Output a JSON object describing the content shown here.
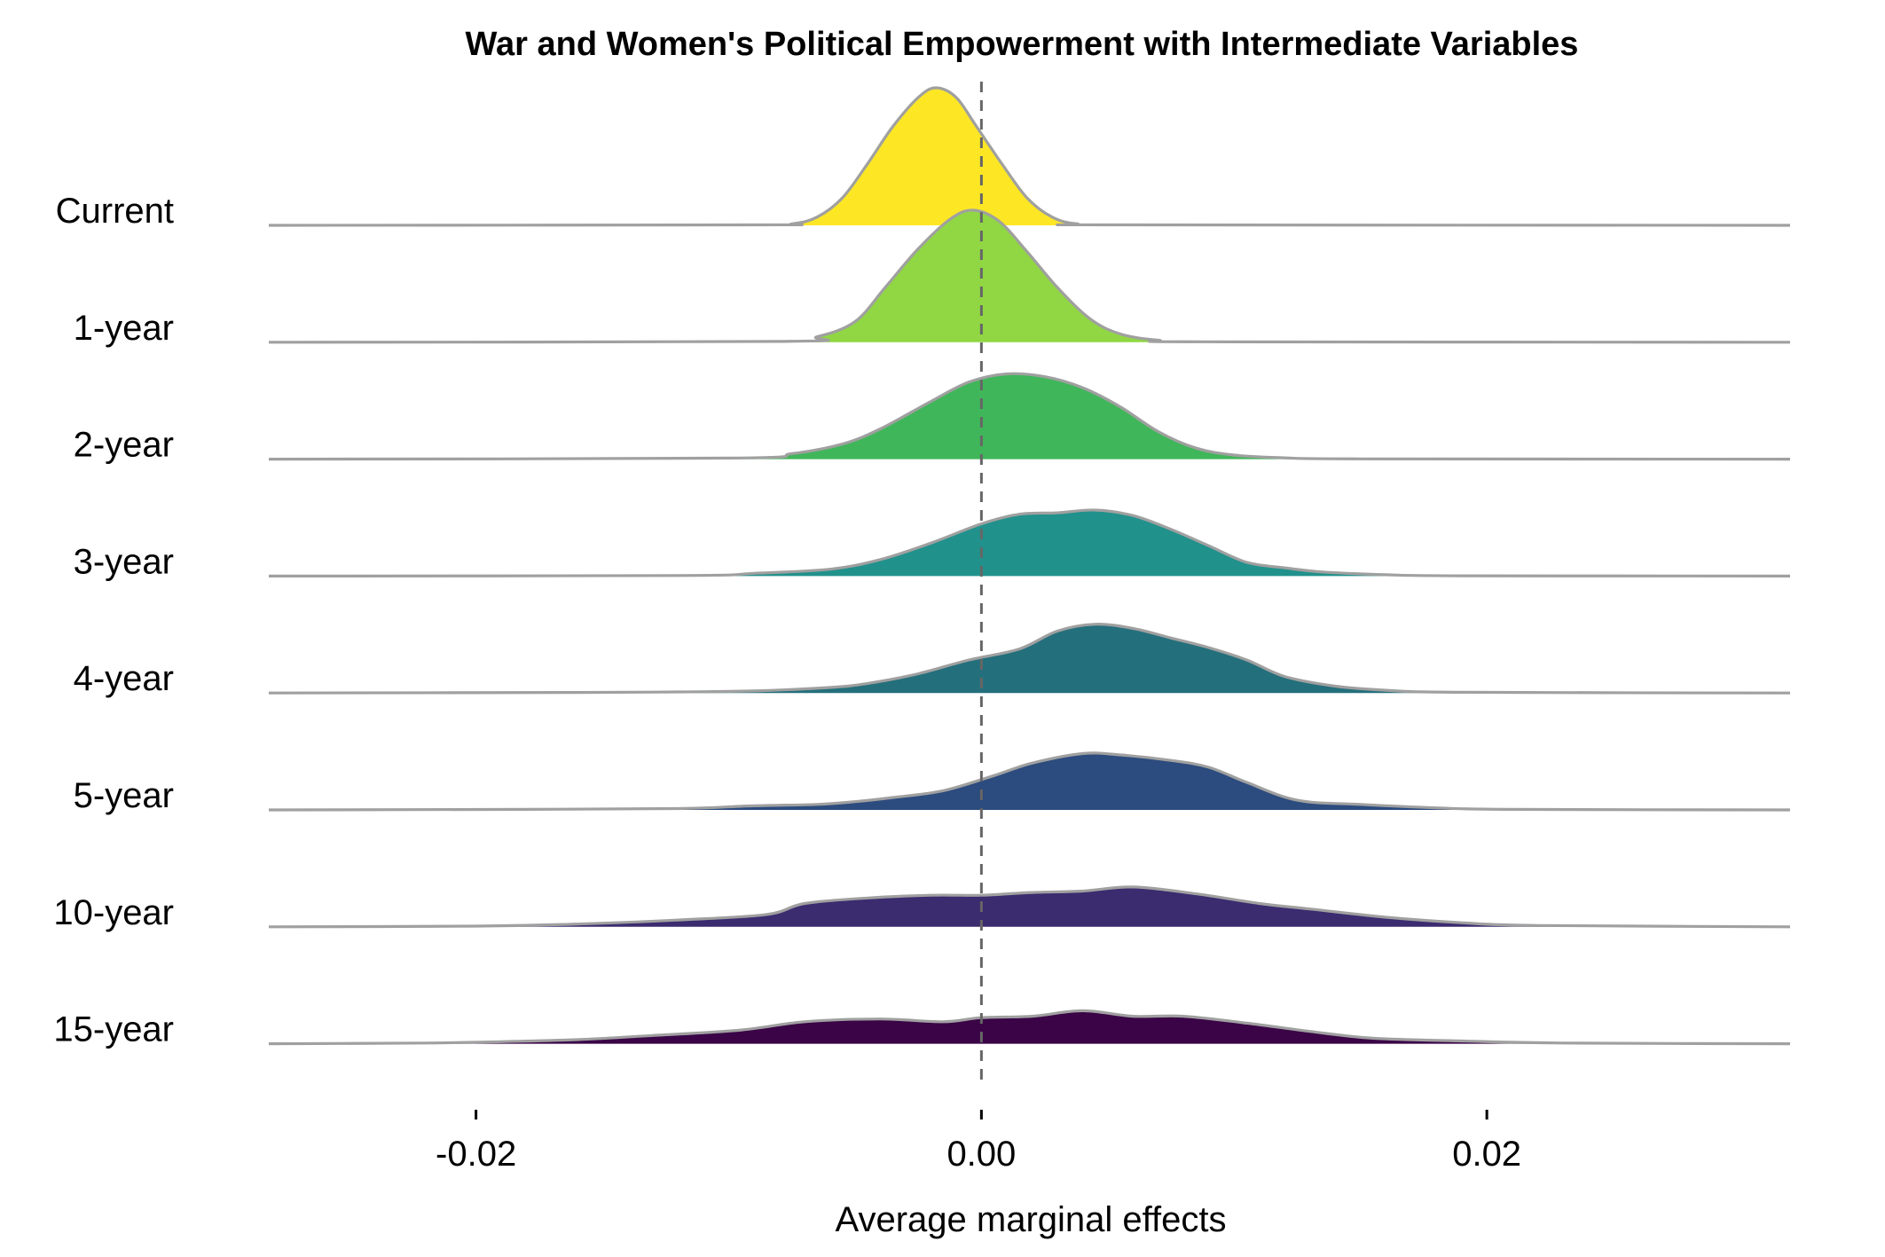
{
  "chart_data": {
    "type": "ridgeline",
    "title": "War and Women's Political Empowerment with Intermediate Variables",
    "xlabel": "Average marginal effects",
    "ylabel": "",
    "xlim": [
      -0.0282,
      0.032
    ],
    "x_ticks": [
      -0.02,
      0.0,
      0.02
    ],
    "x_tick_labels": [
      "-0.02",
      "0.00",
      "0.02"
    ],
    "reference_line": {
      "x": 0.0,
      "style": "dashed",
      "color": "#666666"
    },
    "grid": false,
    "legend": "none",
    "outline_color": "#a0a0a0",
    "series": [
      {
        "name": "Current",
        "color": "#fde725",
        "density": [
          [
            -0.0282,
            0
          ],
          [
            -0.009,
            0.003
          ],
          [
            -0.0075,
            0.01
          ],
          [
            -0.0065,
            0.06
          ],
          [
            -0.0055,
            0.2
          ],
          [
            -0.0045,
            0.45
          ],
          [
            -0.0035,
            0.72
          ],
          [
            -0.0025,
            0.93
          ],
          [
            -0.0018,
            1.0
          ],
          [
            -0.001,
            0.93
          ],
          [
            -0.0002,
            0.72
          ],
          [
            0.0008,
            0.45
          ],
          [
            0.0018,
            0.2
          ],
          [
            0.0028,
            0.06
          ],
          [
            0.0038,
            0.01
          ],
          [
            0.0055,
            0.003
          ],
          [
            0.032,
            0
          ]
        ]
      },
      {
        "name": "1-year",
        "color": "#90d743",
        "density": [
          [
            -0.0282,
            0
          ],
          [
            -0.008,
            0.006
          ],
          [
            -0.0065,
            0.04
          ],
          [
            -0.005,
            0.15
          ],
          [
            -0.0038,
            0.4
          ],
          [
            -0.0025,
            0.68
          ],
          [
            -0.0012,
            0.9
          ],
          [
            -0.0003,
            0.96
          ],
          [
            0.0007,
            0.88
          ],
          [
            0.0018,
            0.66
          ],
          [
            0.003,
            0.4
          ],
          [
            0.0043,
            0.17
          ],
          [
            0.0055,
            0.06
          ],
          [
            0.007,
            0.015
          ],
          [
            0.009,
            0.003
          ],
          [
            0.032,
            0
          ]
        ]
      },
      {
        "name": "2-year",
        "color": "#40b65a",
        "density": [
          [
            -0.0282,
            0
          ],
          [
            -0.01,
            0.008
          ],
          [
            -0.0075,
            0.04
          ],
          [
            -0.0055,
            0.11
          ],
          [
            -0.004,
            0.22
          ],
          [
            -0.002,
            0.42
          ],
          [
            -0.0005,
            0.56
          ],
          [
            0.001,
            0.62
          ],
          [
            0.0025,
            0.6
          ],
          [
            0.004,
            0.52
          ],
          [
            0.0055,
            0.38
          ],
          [
            0.007,
            0.2
          ],
          [
            0.0085,
            0.08
          ],
          [
            0.01,
            0.03
          ],
          [
            0.012,
            0.01
          ],
          [
            0.015,
            0.002
          ],
          [
            0.032,
            0
          ]
        ]
      },
      {
        "name": "3-year",
        "color": "#21918c",
        "density": [
          [
            -0.0282,
            0
          ],
          [
            -0.012,
            0.004
          ],
          [
            -0.009,
            0.02
          ],
          [
            -0.006,
            0.05
          ],
          [
            -0.004,
            0.12
          ],
          [
            -0.002,
            0.24
          ],
          [
            0,
            0.38
          ],
          [
            0.0015,
            0.45
          ],
          [
            0.003,
            0.46
          ],
          [
            0.0045,
            0.48
          ],
          [
            0.006,
            0.44
          ],
          [
            0.0075,
            0.34
          ],
          [
            0.009,
            0.22
          ],
          [
            0.0105,
            0.1
          ],
          [
            0.012,
            0.06
          ],
          [
            0.0135,
            0.03
          ],
          [
            0.016,
            0.01
          ],
          [
            0.019,
            0.002
          ],
          [
            0.032,
            0
          ]
        ]
      },
      {
        "name": "4-year",
        "color": "#246f7c",
        "density": [
          [
            -0.0282,
            0
          ],
          [
            -0.016,
            0.004
          ],
          [
            -0.012,
            0.008
          ],
          [
            -0.009,
            0.015
          ],
          [
            -0.006,
            0.04
          ],
          [
            -0.0045,
            0.07
          ],
          [
            -0.0025,
            0.14
          ],
          [
            -0.0005,
            0.24
          ],
          [
            0.0015,
            0.32
          ],
          [
            0.003,
            0.45
          ],
          [
            0.0045,
            0.5
          ],
          [
            0.006,
            0.47
          ],
          [
            0.0075,
            0.4
          ],
          [
            0.009,
            0.33
          ],
          [
            0.0105,
            0.24
          ],
          [
            0.012,
            0.12
          ],
          [
            0.014,
            0.05
          ],
          [
            0.016,
            0.02
          ],
          [
            0.019,
            0.005
          ],
          [
            0.032,
            0
          ]
        ]
      },
      {
        "name": "5-year",
        "color": "#2c4b7e",
        "density": [
          [
            -0.0282,
            0
          ],
          [
            -0.018,
            0.004
          ],
          [
            -0.012,
            0.01
          ],
          [
            -0.009,
            0.03
          ],
          [
            -0.0065,
            0.04
          ],
          [
            -0.005,
            0.06
          ],
          [
            -0.0035,
            0.09
          ],
          [
            -0.0015,
            0.14
          ],
          [
            0.0005,
            0.25
          ],
          [
            0.002,
            0.34
          ],
          [
            0.004,
            0.41
          ],
          [
            0.0055,
            0.4
          ],
          [
            0.0075,
            0.36
          ],
          [
            0.009,
            0.31
          ],
          [
            0.0105,
            0.2
          ],
          [
            0.0125,
            0.07
          ],
          [
            0.015,
            0.04
          ],
          [
            0.018,
            0.015
          ],
          [
            0.021,
            0.004
          ],
          [
            0.032,
            0
          ]
        ]
      },
      {
        "name": "10-year",
        "color": "#3b2b6f",
        "density": [
          [
            -0.0282,
            0
          ],
          [
            -0.02,
            0.005
          ],
          [
            -0.016,
            0.02
          ],
          [
            -0.012,
            0.05
          ],
          [
            -0.0085,
            0.09
          ],
          [
            -0.007,
            0.17
          ],
          [
            -0.0045,
            0.21
          ],
          [
            -0.002,
            0.23
          ],
          [
            0,
            0.23
          ],
          [
            0.002,
            0.25
          ],
          [
            0.004,
            0.26
          ],
          [
            0.006,
            0.29
          ],
          [
            0.0085,
            0.24
          ],
          [
            0.011,
            0.17
          ],
          [
            0.013,
            0.13
          ],
          [
            0.016,
            0.07
          ],
          [
            0.019,
            0.03
          ],
          [
            0.022,
            0.01
          ],
          [
            0.032,
            0
          ]
        ]
      },
      {
        "name": "15-year",
        "color": "#3a0447",
        "density": [
          [
            -0.0282,
            0
          ],
          [
            -0.022,
            0.005
          ],
          [
            -0.019,
            0.015
          ],
          [
            -0.016,
            0.03
          ],
          [
            -0.013,
            0.06
          ],
          [
            -0.0095,
            0.1
          ],
          [
            -0.007,
            0.16
          ],
          [
            -0.004,
            0.18
          ],
          [
            -0.0015,
            0.16
          ],
          [
            0,
            0.19
          ],
          [
            0.002,
            0.2
          ],
          [
            0.004,
            0.24
          ],
          [
            0.006,
            0.2
          ],
          [
            0.008,
            0.2
          ],
          [
            0.0105,
            0.15
          ],
          [
            0.013,
            0.09
          ],
          [
            0.0155,
            0.04
          ],
          [
            0.019,
            0.02
          ],
          [
            0.023,
            0.005
          ],
          [
            0.032,
            0
          ]
        ]
      }
    ]
  }
}
